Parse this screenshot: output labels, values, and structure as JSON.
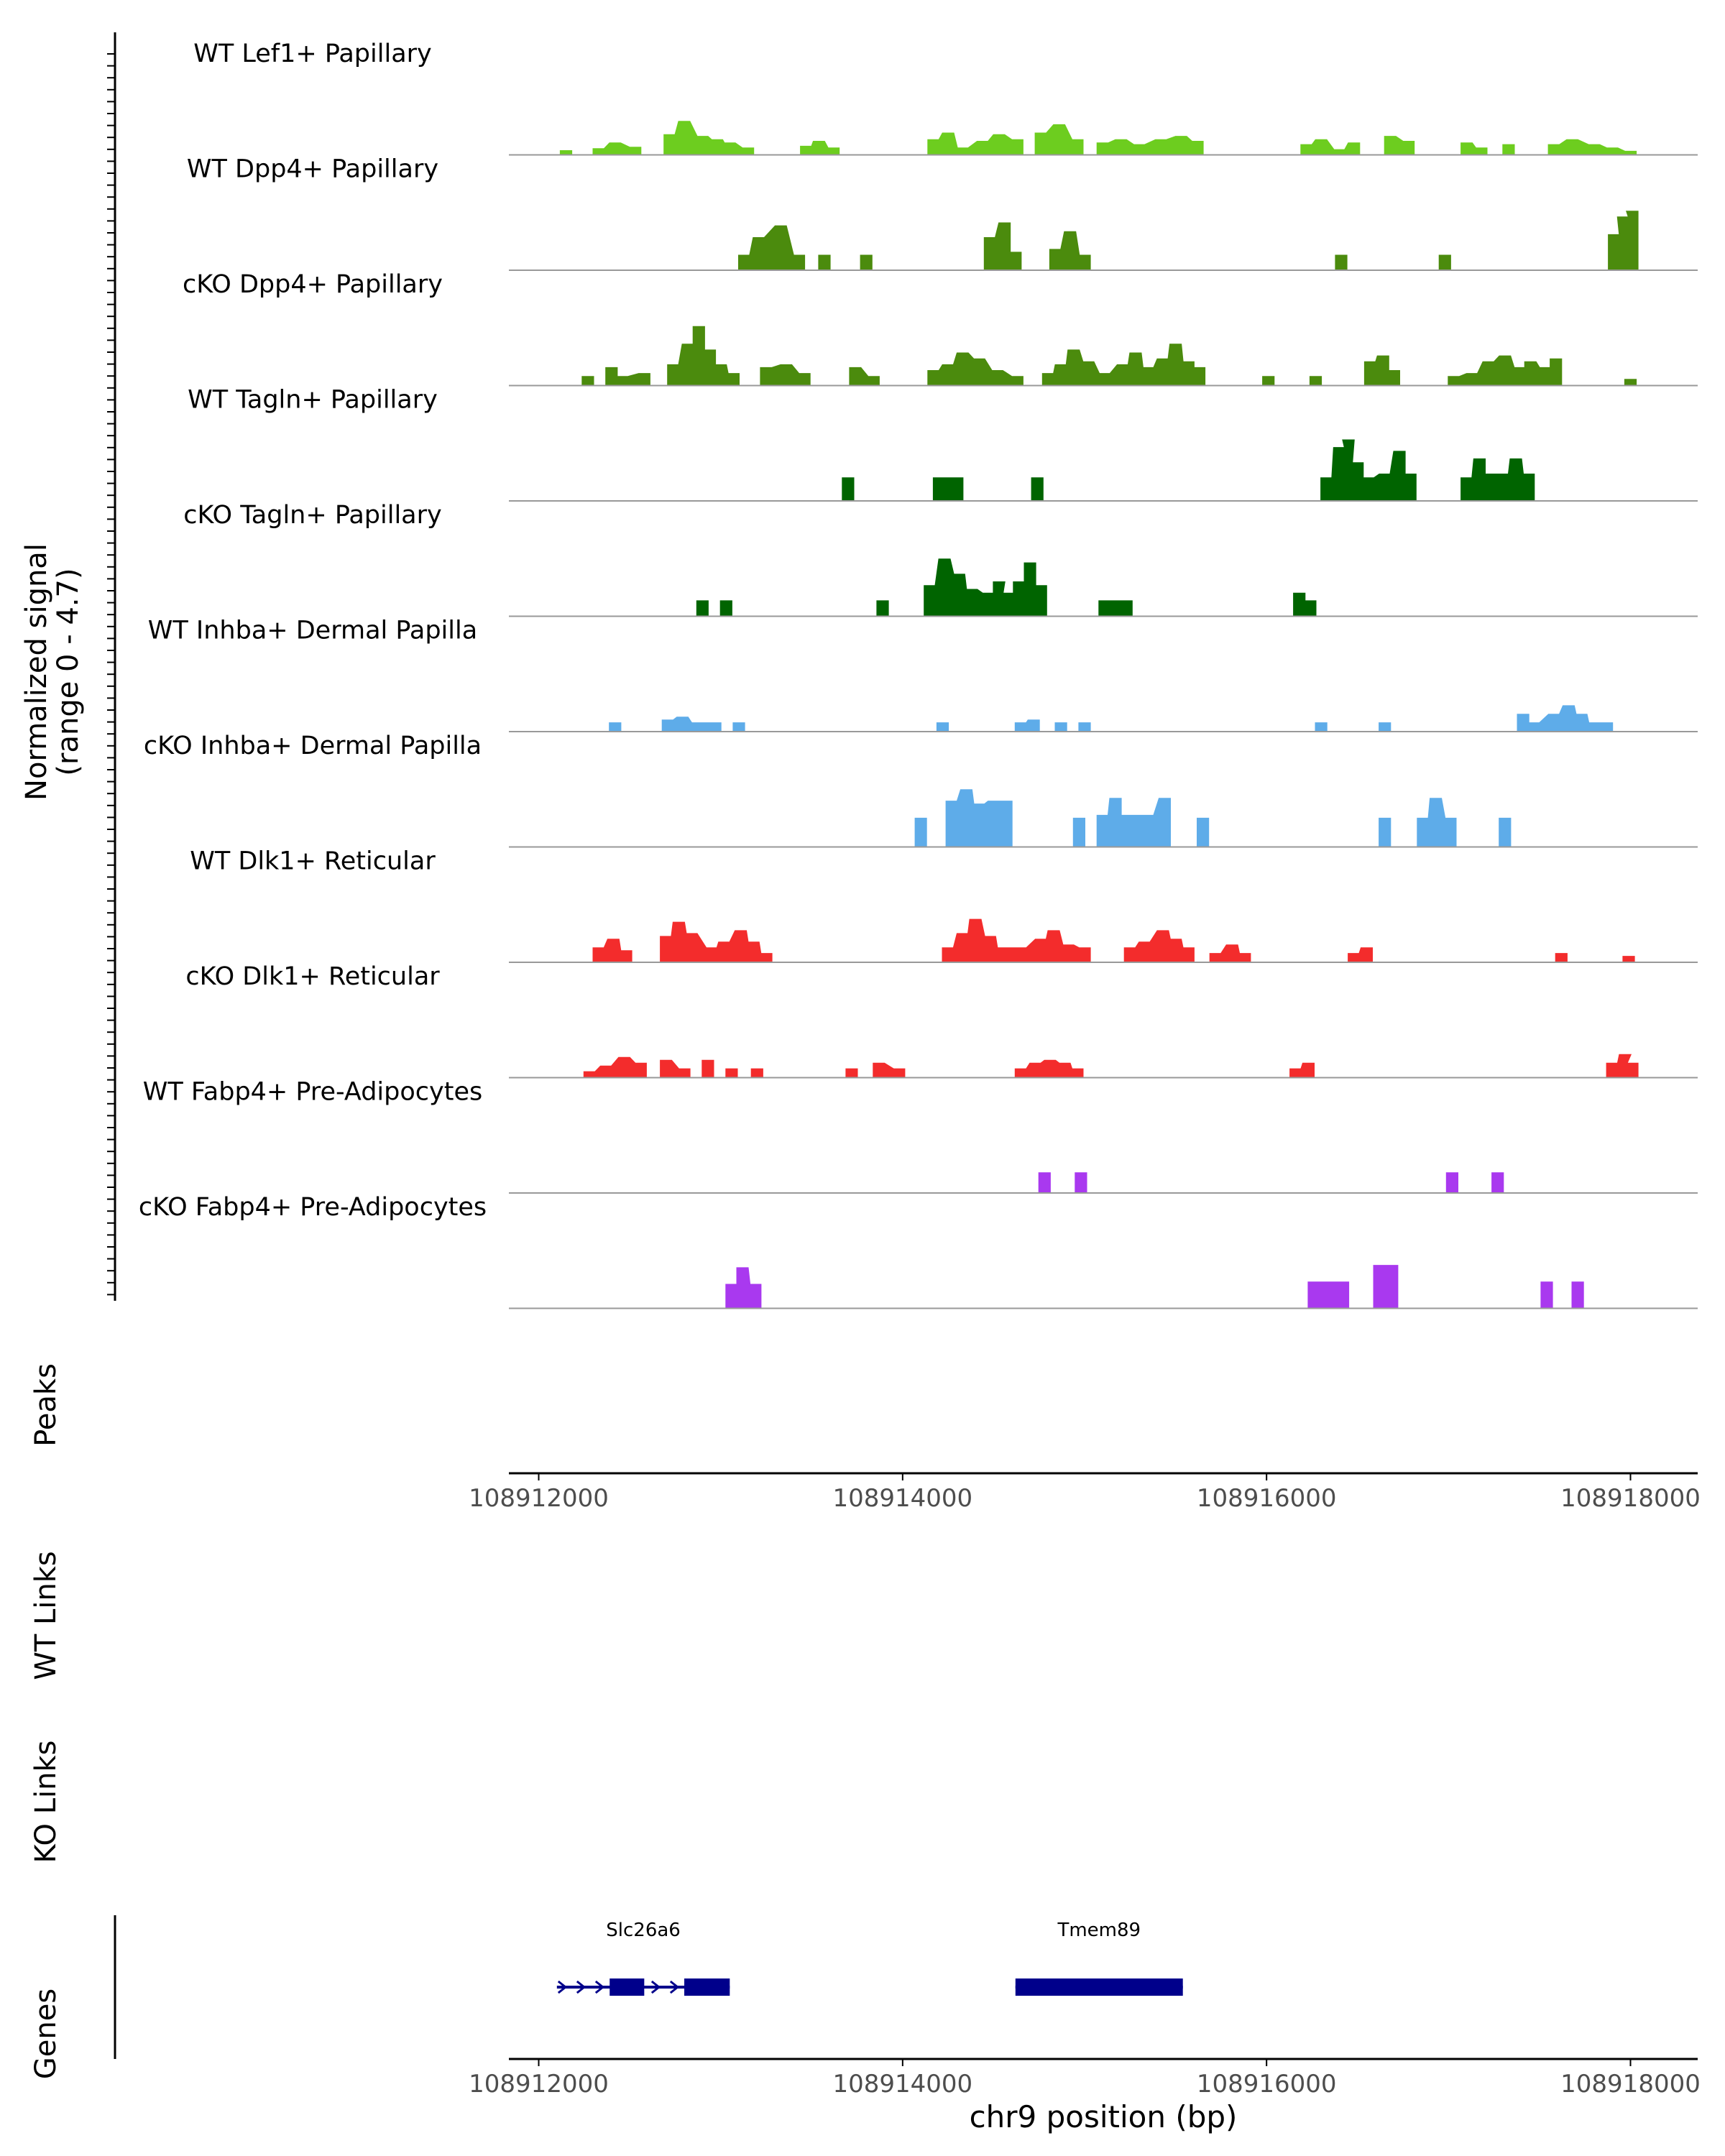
{
  "chart_data": {
    "type": "area",
    "title": "",
    "ylabel": "Normalized signal\n(range 0 - 4.7)",
    "y_range": [
      0,
      4.7
    ],
    "xlabel": "chr9 position (bp)",
    "x_range": [
      108911830,
      108918350
    ],
    "x_ticks": [
      108912000,
      108914000,
      108916000,
      108918000
    ],
    "x_tick_labels": [
      "108912000",
      "108914000",
      "108916000",
      "108918000"
    ],
    "tracks": [
      {
        "name": "WT Lef1+ Papillary",
        "color": "#6dcd1f",
        "peak": 0.35,
        "bins": [
          [
            108912150,
            0.12
          ],
          [
            108912330,
            0.18
          ],
          [
            108912420,
            0.35
          ],
          [
            108912530,
            0.22
          ],
          [
            108912720,
            0.6
          ],
          [
            108912800,
            1.0
          ],
          [
            108912900,
            0.55
          ],
          [
            108912980,
            0.45
          ],
          [
            108913050,
            0.35
          ],
          [
            108913150,
            0.2
          ],
          [
            108913470,
            0.25
          ],
          [
            108913540,
            0.4
          ],
          [
            108913620,
            0.2
          ],
          [
            108914170,
            0.45
          ],
          [
            108914250,
            0.65
          ],
          [
            108914330,
            0.2
          ],
          [
            108914440,
            0.4
          ],
          [
            108914530,
            0.6
          ],
          [
            108914630,
            0.45
          ],
          [
            108914760,
            0.65
          ],
          [
            108914860,
            0.9
          ],
          [
            108914960,
            0.45
          ],
          [
            108915100,
            0.35
          ],
          [
            108915200,
            0.45
          ],
          [
            108915300,
            0.3
          ],
          [
            108915420,
            0.45
          ],
          [
            108915530,
            0.55
          ],
          [
            108915620,
            0.4
          ],
          [
            108916220,
            0.3
          ],
          [
            108916300,
            0.45
          ],
          [
            108916400,
            0.15
          ],
          [
            108916480,
            0.35
          ],
          [
            108916680,
            0.55
          ],
          [
            108916780,
            0.4
          ],
          [
            108917100,
            0.35
          ],
          [
            108917180,
            0.2
          ],
          [
            108917330,
            0.3
          ],
          [
            108917580,
            0.3
          ],
          [
            108917680,
            0.45
          ],
          [
            108917800,
            0.3
          ],
          [
            108917900,
            0.2
          ],
          [
            108918000,
            0.1
          ]
        ]
      },
      {
        "name": "WT Dpp4+ Papillary",
        "color": "#4b8b0d",
        "peak": 0.62,
        "bins": [
          [
            108913130,
            0.25
          ],
          [
            108913210,
            0.55
          ],
          [
            108913330,
            0.75
          ],
          [
            108913430,
            0.25
          ],
          [
            108913570,
            0.25
          ],
          [
            108913800,
            0.25
          ],
          [
            108914480,
            0.55
          ],
          [
            108914560,
            0.8
          ],
          [
            108914620,
            0.3
          ],
          [
            108914840,
            0.35
          ],
          [
            108914920,
            0.65
          ],
          [
            108915000,
            0.25
          ],
          [
            108916410,
            0.25
          ],
          [
            108916980,
            0.25
          ],
          [
            108917910,
            0.6
          ],
          [
            108917960,
            0.9
          ],
          [
            108918010,
            1.0
          ]
        ]
      },
      {
        "name": "cKO Dpp4+ Papillary",
        "color": "#4b8b0d",
        "peak": 0.62,
        "bins": [
          [
            108912270,
            0.15
          ],
          [
            108912400,
            0.3
          ],
          [
            108912460,
            0.15
          ],
          [
            108912580,
            0.2
          ],
          [
            108912740,
            0.35
          ],
          [
            108912820,
            0.7
          ],
          [
            108912880,
            1.0
          ],
          [
            108912940,
            0.6
          ],
          [
            108913000,
            0.35
          ],
          [
            108913070,
            0.2
          ],
          [
            108913250,
            0.3
          ],
          [
            108913360,
            0.35
          ],
          [
            108913460,
            0.2
          ],
          [
            108913740,
            0.3
          ],
          [
            108913840,
            0.15
          ],
          [
            108914170,
            0.25
          ],
          [
            108914250,
            0.35
          ],
          [
            108914330,
            0.55
          ],
          [
            108914420,
            0.45
          ],
          [
            108914520,
            0.25
          ],
          [
            108914630,
            0.15
          ],
          [
            108914800,
            0.2
          ],
          [
            108914870,
            0.35
          ],
          [
            108914940,
            0.6
          ],
          [
            108915020,
            0.4
          ],
          [
            108915110,
            0.2
          ],
          [
            108915210,
            0.35
          ],
          [
            108915280,
            0.55
          ],
          [
            108915350,
            0.3
          ],
          [
            108915430,
            0.45
          ],
          [
            108915500,
            0.7
          ],
          [
            108915570,
            0.4
          ],
          [
            108915630,
            0.3
          ],
          [
            108916010,
            0.15
          ],
          [
            108916270,
            0.15
          ],
          [
            108916570,
            0.4
          ],
          [
            108916640,
            0.5
          ],
          [
            108916700,
            0.25
          ],
          [
            108917030,
            0.15
          ],
          [
            108917130,
            0.2
          ],
          [
            108917220,
            0.4
          ],
          [
            108917310,
            0.5
          ],
          [
            108917390,
            0.3
          ],
          [
            108917450,
            0.4
          ],
          [
            108917530,
            0.3
          ],
          [
            108917590,
            0.45
          ],
          [
            108918000,
            0.1
          ]
        ]
      },
      {
        "name": "WT Tagln+ Papillary",
        "color": "#006400",
        "peak": 0.8,
        "bins": [
          [
            108913700,
            0.3
          ],
          [
            108914200,
            0.3
          ],
          [
            108914300,
            0.3
          ],
          [
            108914740,
            0.3
          ],
          [
            108916330,
            0.3
          ],
          [
            108916400,
            0.7
          ],
          [
            108916450,
            0.8
          ],
          [
            108916500,
            0.5
          ],
          [
            108916560,
            0.3
          ],
          [
            108916650,
            0.35
          ],
          [
            108916730,
            0.65
          ],
          [
            108916790,
            0.35
          ],
          [
            108917100,
            0.3
          ],
          [
            108917170,
            0.55
          ],
          [
            108917230,
            0.35
          ],
          [
            108917300,
            0.35
          ],
          [
            108917370,
            0.55
          ],
          [
            108917440,
            0.35
          ]
        ]
      },
      {
        "name": "cKO Tagln+ Papillary",
        "color": "#006400",
        "peak": 0.8,
        "bins": [
          [
            108912900,
            0.2
          ],
          [
            108913030,
            0.2
          ],
          [
            108913890,
            0.2
          ],
          [
            108914150,
            0.4
          ],
          [
            108914230,
            0.75
          ],
          [
            108914310,
            0.55
          ],
          [
            108914380,
            0.35
          ],
          [
            108914470,
            0.3
          ],
          [
            108914530,
            0.45
          ],
          [
            108914580,
            0.3
          ],
          [
            108914640,
            0.45
          ],
          [
            108914700,
            0.7
          ],
          [
            108914760,
            0.4
          ],
          [
            108915110,
            0.2
          ],
          [
            108915230,
            0.2
          ],
          [
            108916180,
            0.3
          ],
          [
            108916240,
            0.2
          ]
        ]
      },
      {
        "name": "WT Inhba+ Dermal Papilla",
        "color": "#5eace9",
        "peak": 0.6,
        "bins": [
          [
            108912420,
            0.15
          ],
          [
            108912710,
            0.2
          ],
          [
            108912790,
            0.25
          ],
          [
            108912870,
            0.15
          ],
          [
            108912970,
            0.15
          ],
          [
            108913100,
            0.15
          ],
          [
            108914220,
            0.15
          ],
          [
            108914650,
            0.15
          ],
          [
            108914720,
            0.2
          ],
          [
            108914870,
            0.15
          ],
          [
            108915000,
            0.15
          ],
          [
            108916300,
            0.15
          ],
          [
            108916650,
            0.15
          ],
          [
            108917410,
            0.3
          ],
          [
            108917470,
            0.15
          ],
          [
            108917580,
            0.3
          ],
          [
            108917660,
            0.45
          ],
          [
            108917730,
            0.3
          ],
          [
            108917800,
            0.15
          ],
          [
            108917870,
            0.15
          ]
        ]
      },
      {
        "name": "cKO Inhba+ Dermal Papilla",
        "color": "#5eace9",
        "peak": 0.6,
        "bins": [
          [
            108914100,
            0.5
          ],
          [
            108914270,
            0.8
          ],
          [
            108914350,
            1.0
          ],
          [
            108914420,
            0.75
          ],
          [
            108914500,
            0.8
          ],
          [
            108914570,
            0.8
          ],
          [
            108914970,
            0.5
          ],
          [
            108915100,
            0.55
          ],
          [
            108915170,
            0.85
          ],
          [
            108915230,
            0.55
          ],
          [
            108915350,
            0.55
          ],
          [
            108915440,
            0.85
          ],
          [
            108915650,
            0.5
          ],
          [
            108916650,
            0.5
          ],
          [
            108916860,
            0.5
          ],
          [
            108916930,
            0.85
          ],
          [
            108917010,
            0.5
          ],
          [
            108917310,
            0.5
          ]
        ]
      },
      {
        "name": "WT Dlk1+ Reticular",
        "color": "#f32c2c",
        "peak": 0.6,
        "bins": [
          [
            108912330,
            0.25
          ],
          [
            108912410,
            0.4
          ],
          [
            108912480,
            0.2
          ],
          [
            108912700,
            0.45
          ],
          [
            108912770,
            0.7
          ],
          [
            108912840,
            0.5
          ],
          [
            108912950,
            0.25
          ],
          [
            108913020,
            0.35
          ],
          [
            108913110,
            0.55
          ],
          [
            108913180,
            0.35
          ],
          [
            108913250,
            0.15
          ],
          [
            108914250,
            0.25
          ],
          [
            108914330,
            0.5
          ],
          [
            108914400,
            0.75
          ],
          [
            108914480,
            0.45
          ],
          [
            108914550,
            0.25
          ],
          [
            108914650,
            0.25
          ],
          [
            108914760,
            0.4
          ],
          [
            108914830,
            0.55
          ],
          [
            108914910,
            0.3
          ],
          [
            108915000,
            0.25
          ],
          [
            108915250,
            0.25
          ],
          [
            108915330,
            0.35
          ],
          [
            108915430,
            0.55
          ],
          [
            108915500,
            0.4
          ],
          [
            108915570,
            0.25
          ],
          [
            108915720,
            0.15
          ],
          [
            108915810,
            0.3
          ],
          [
            108915880,
            0.15
          ],
          [
            108916480,
            0.15
          ],
          [
            108916550,
            0.25
          ],
          [
            108917620,
            0.15
          ],
          [
            108917990,
            0.1
          ]
        ]
      },
      {
        "name": "cKO Dlk1+ Reticular",
        "color": "#f32c2c",
        "peak": 0.6,
        "bins": [
          [
            108912280,
            0.1
          ],
          [
            108912370,
            0.2
          ],
          [
            108912470,
            0.35
          ],
          [
            108912560,
            0.25
          ],
          [
            108912700,
            0.3
          ],
          [
            108912800,
            0.15
          ],
          [
            108912930,
            0.3
          ],
          [
            108913060,
            0.15
          ],
          [
            108913200,
            0.15
          ],
          [
            108913720,
            0.15
          ],
          [
            108913870,
            0.25
          ],
          [
            108913980,
            0.15
          ],
          [
            108914650,
            0.15
          ],
          [
            108914730,
            0.25
          ],
          [
            108914810,
            0.3
          ],
          [
            108914890,
            0.25
          ],
          [
            108914960,
            0.15
          ],
          [
            108916160,
            0.15
          ],
          [
            108916230,
            0.25
          ],
          [
            108917900,
            0.25
          ],
          [
            108917970,
            0.4
          ],
          [
            108918010,
            0.25
          ]
        ]
      },
      {
        "name": "WT Fabp4+ Pre-Adipocytes",
        "color": "#a939ef",
        "peak": 0.35,
        "bins": [
          [
            108914780,
            0.6
          ],
          [
            108914980,
            0.6
          ],
          [
            108917020,
            0.6
          ],
          [
            108917270,
            0.6
          ]
        ]
      },
      {
        "name": "cKO Fabp4+ Pre-Adipocytes",
        "color": "#a939ef",
        "peak": 0.5,
        "bins": [
          [
            108913060,
            0.5
          ],
          [
            108913120,
            0.85
          ],
          [
            108913190,
            0.5
          ],
          [
            108916260,
            0.55
          ],
          [
            108916350,
            0.55
          ],
          [
            108916420,
            0.55
          ],
          [
            108916620,
            0.9
          ],
          [
            108916690,
            0.9
          ],
          [
            108917540,
            0.55
          ],
          [
            108917710,
            0.55
          ]
        ]
      }
    ],
    "panels": [
      {
        "label": "Peaks"
      },
      {
        "label": "WT Links"
      },
      {
        "label": "KO Links"
      },
      {
        "label": "Genes"
      }
    ],
    "genes": [
      {
        "name": "Slc26a6",
        "start": 108912100,
        "end": 108913050,
        "strand": "+",
        "exons": [
          [
            108912390,
            108912580
          ],
          [
            108912800,
            108913050
          ]
        ]
      },
      {
        "name": "Tmem89",
        "start": 108914620,
        "end": 108915540,
        "strand": "+",
        "exons": [
          [
            108914620,
            108915540
          ]
        ]
      }
    ],
    "colors": {
      "gene": "#00008b",
      "axis": "#000000",
      "baseline": "#999999",
      "tick_label": "#4d4d4d"
    }
  }
}
